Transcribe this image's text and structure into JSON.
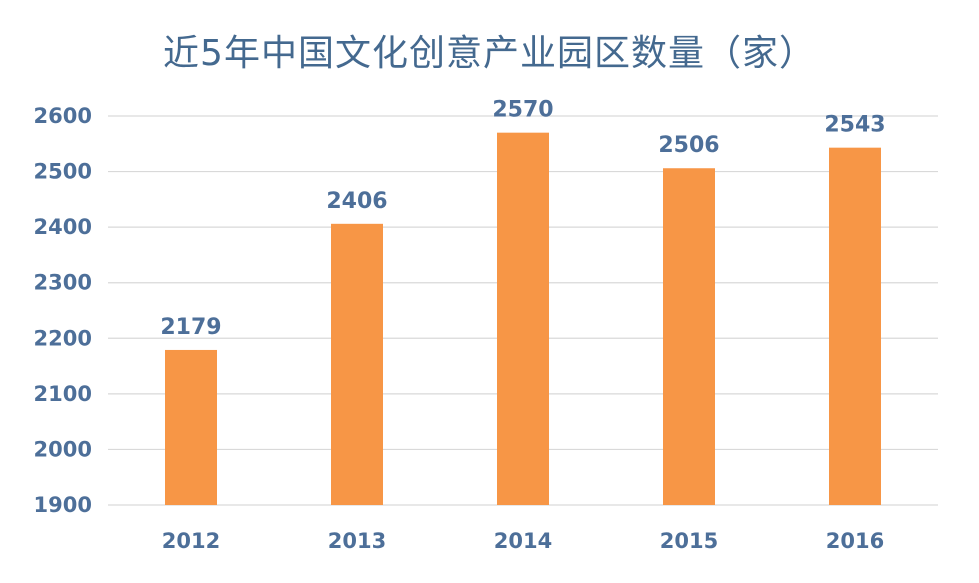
{
  "chart_data": {
    "type": "bar",
    "title": "近5年中国文化创意产业园区数量（家）",
    "categories": [
      "2012",
      "2013",
      "2014",
      "2015",
      "2016"
    ],
    "values": [
      2179,
      2406,
      2570,
      2506,
      2543
    ],
    "ylim": [
      1900,
      2600
    ],
    "yticks": [
      1900,
      2000,
      2100,
      2200,
      2300,
      2400,
      2500,
      2600
    ],
    "grid": true,
    "xlabel": "",
    "ylabel": "",
    "colors": {
      "bar": "#f79646",
      "text": "#4d6f99",
      "title": "#44698f",
      "grid": "#d9d9d9"
    }
  }
}
